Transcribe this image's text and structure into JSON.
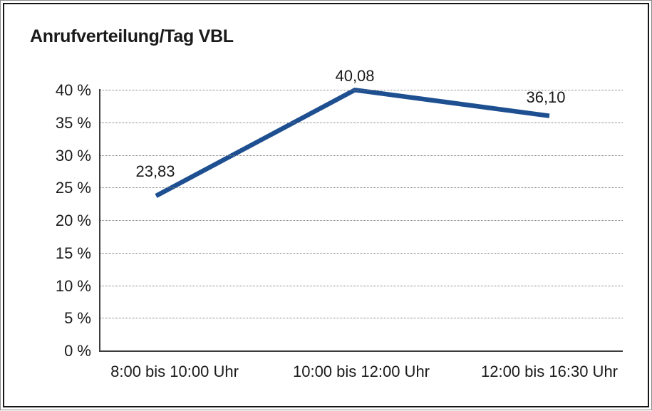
{
  "window": {
    "background": "#ffffff",
    "outer_border_color": "#8a8a8a",
    "inner_border_color": "#161616"
  },
  "chart_data": {
    "type": "line",
    "title": "Anrufverteilung/Tag VBL",
    "categories": [
      "8:00 bis 10:00 Uhr",
      "10:00 bis 12:00 Uhr",
      "12:00 bis 16:30 Uhr"
    ],
    "values": [
      23.83,
      40.08,
      36.1
    ],
    "value_labels": [
      "23,83",
      "40,08",
      "36,10"
    ],
    "y_ticks": [
      {
        "value": 0,
        "label": "0 %"
      },
      {
        "value": 5,
        "label": "5 %"
      },
      {
        "value": 10,
        "label": "10 %"
      },
      {
        "value": 15,
        "label": "15 %"
      },
      {
        "value": 20,
        "label": "20 %"
      },
      {
        "value": 25,
        "label": "25 %"
      },
      {
        "value": 30,
        "label": "30 %"
      },
      {
        "value": 35,
        "label": "35 %"
      },
      {
        "value": 40,
        "label": "40 %"
      }
    ],
    "ylim": [
      0,
      40
    ],
    "xlabel": "",
    "ylabel": "",
    "grid": "horizontal dotted",
    "legend": "none",
    "line_color": "#1d4f91",
    "axis_color": "#3d3d3d",
    "grid_color": "#7d7d7d",
    "text_color": "#1a1a1a"
  }
}
